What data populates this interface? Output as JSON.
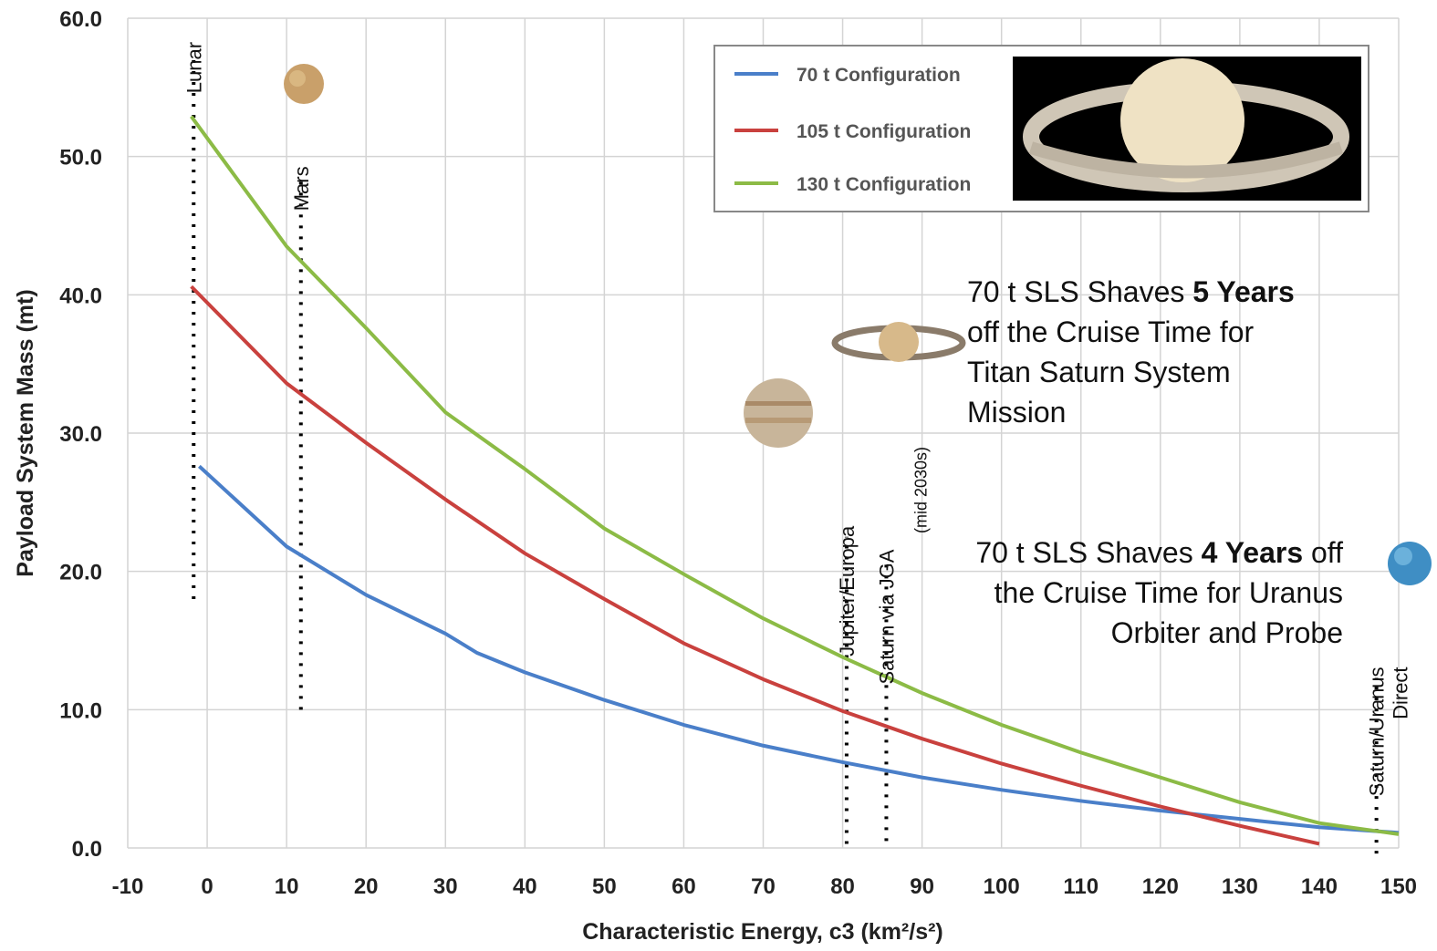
{
  "chart_data": {
    "type": "line",
    "xlabel": "Characteristic Energy, c3 (km²/s²)",
    "ylabel": "Payload System Mass (mt)",
    "xlim": [
      -10,
      150
    ],
    "ylim": [
      0,
      60
    ],
    "xticks": [
      -10,
      0,
      10,
      20,
      30,
      40,
      50,
      60,
      70,
      80,
      90,
      100,
      110,
      120,
      130,
      140,
      150
    ],
    "yticks": [
      {
        "value": 0,
        "label": "0.0"
      },
      {
        "value": 10,
        "label": "10.0"
      },
      {
        "value": 20,
        "label": "20.0"
      },
      {
        "value": 30,
        "label": "30.0"
      },
      {
        "value": 40,
        "label": "40.0"
      },
      {
        "value": 50,
        "label": "50.0"
      },
      {
        "value": 60,
        "label": "60.0"
      }
    ],
    "grid": true,
    "legend": "upper right",
    "series": [
      {
        "name": "70 t Configuration",
        "color": "#4a7fc9",
        "x": [
          -1,
          10,
          20,
          30,
          34,
          40,
          50,
          60,
          70,
          80,
          90,
          100,
          110,
          120,
          130,
          140,
          150
        ],
        "values": [
          27.6,
          21.8,
          18.3,
          15.5,
          14.1,
          12.7,
          10.7,
          8.9,
          7.4,
          6.2,
          5.1,
          4.2,
          3.4,
          2.7,
          2.1,
          1.5,
          1.1
        ]
      },
      {
        "name": "105 t Configuration",
        "color": "#c9413e",
        "x": [
          -2,
          10,
          20,
          30,
          40,
          50,
          60,
          70,
          80,
          90,
          100,
          110,
          120,
          130,
          140
        ],
        "values": [
          40.6,
          33.6,
          29.3,
          25.2,
          21.3,
          18.0,
          14.8,
          12.2,
          9.9,
          7.9,
          6.1,
          4.5,
          3.0,
          1.6,
          0.3
        ]
      },
      {
        "name": "130 t Configuration",
        "color": "#8cbb46",
        "x": [
          -2,
          10,
          20,
          30,
          40,
          50,
          60,
          70,
          80,
          90,
          100,
          110,
          120,
          130,
          140,
          150
        ],
        "values": [
          52.9,
          43.5,
          37.6,
          31.5,
          27.4,
          23.1,
          19.8,
          16.6,
          13.8,
          11.2,
          8.9,
          6.9,
          5.1,
          3.3,
          1.8,
          1.0
        ]
      }
    ],
    "markers": [
      {
        "label_lines": [
          "Lunar"
        ],
        "x": -1.7,
        "ymin": 18,
        "ymax": 57.5
      },
      {
        "label_lines": [
          "Mars"
        ],
        "x": 11.8,
        "ymin": 10,
        "ymax": 48.5
      },
      {
        "label_lines": [
          "Jupiter/Europa"
        ],
        "x": 80.5,
        "ymin": 0.3,
        "ymax": 22.5
      },
      {
        "label_lines": [
          "Saturn via JGA"
        ],
        "note": "(mid 2030s)",
        "x": 85.5,
        "ymin": 0.5,
        "ymax": 20.8
      },
      {
        "label_lines": [
          "Saturn/Uranus",
          "Direct"
        ],
        "x": 147.2,
        "ymin": -0.4,
        "ymax": 12.3
      }
    ],
    "annotations": [
      [
        {
          "text": "70 t SLS Shaves ",
          "bold": false
        },
        {
          "text": "5 Years",
          "bold": true
        },
        {
          "text": " off the Cruise Time for Titan Saturn System Mission",
          "bold": false
        }
      ],
      [
        {
          "text": "70 t SLS Shaves ",
          "bold": false
        },
        {
          "text": "4 Years",
          "bold": true
        },
        {
          "text": " off the Cruise Time for Uranus Orbiter and Probe",
          "bold": false
        }
      ]
    ]
  }
}
